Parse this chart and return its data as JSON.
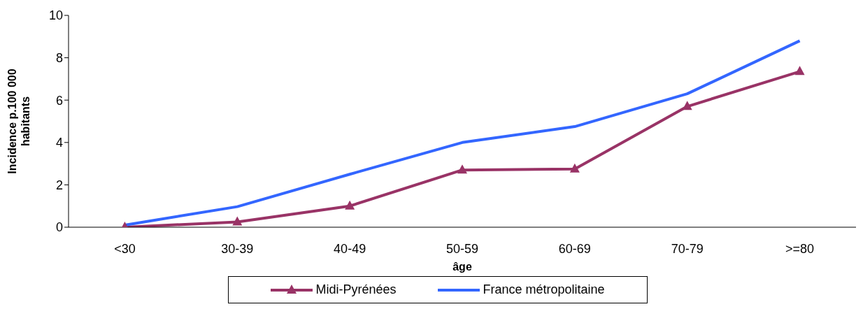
{
  "chart_data": {
    "type": "line",
    "xlabel": "âge",
    "ylabel": "Incidence p.100 000 habitants",
    "categories": [
      "<30",
      "30-39",
      "40-49",
      "50-59",
      "60-69",
      "70-79",
      ">=80"
    ],
    "series": [
      {
        "name": "Midi-Pyrénées",
        "color": "#993366",
        "marker": "triangle",
        "values": [
          0,
          0.25,
          1.0,
          2.7,
          2.75,
          5.7,
          7.35
        ]
      },
      {
        "name": "France métropolitaine",
        "color": "#3366ff",
        "marker": "none",
        "values": [
          0.1,
          0.97,
          2.5,
          4.0,
          4.75,
          6.3,
          8.8
        ]
      }
    ],
    "ylim": [
      0,
      10
    ],
    "yticks": [
      0,
      2,
      4,
      6,
      8,
      10
    ],
    "grid": false,
    "legend": "bottom",
    "line_style": "solid"
  }
}
